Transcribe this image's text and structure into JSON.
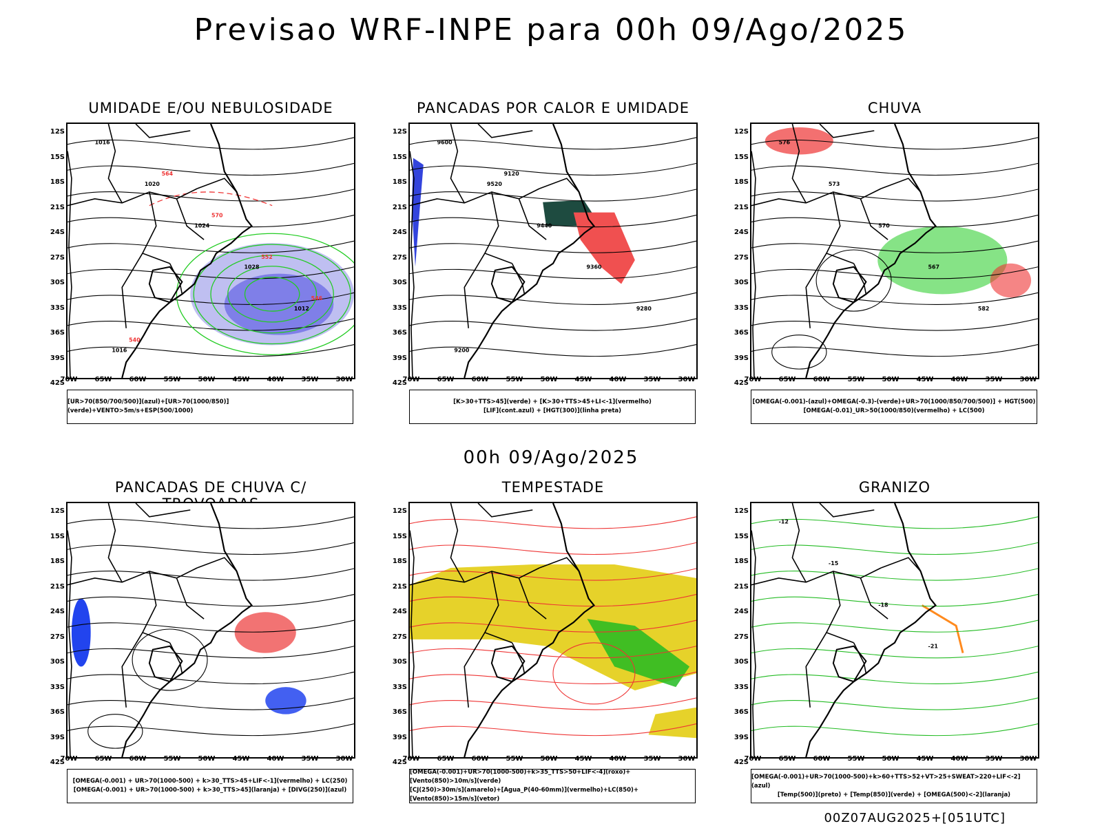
{
  "header": {
    "title": "Previsao WRF-INPE  para 00h 09/Ago/2025",
    "mid_title": "00h 09/Ago/2025",
    "footer": "00Z07AUG2025+[051UTC]"
  },
  "axes": {
    "y_labels": [
      "12S",
      "15S",
      "18S",
      "21S",
      "24S",
      "27S",
      "30S",
      "33S",
      "36S",
      "39S",
      "42S"
    ],
    "x_labels": [
      "70W",
      "65W",
      "60W",
      "55W",
      "50W",
      "45W",
      "40W",
      "35W",
      "30W"
    ]
  },
  "panels": [
    {
      "title": "UMIDADE E/OU NEBULOSIDADE",
      "legend": [
        "[UR>70(850/700/500)](azul)+[UR>70(1000/850)](verde)+VENTO>5m/s+ESP(500/1000)"
      ],
      "contour_labels": [
        "1016",
        "1020",
        "1024",
        "1028",
        "1012",
        "1016",
        "564",
        "570",
        "552",
        "546",
        "540"
      ]
    },
    {
      "title": "PANCADAS POR CALOR E UMIDADE",
      "legend": [
        "[K>30+TTS>45](verde) + [K>30+TTS>45+LI<-1](vermelho)",
        "[LIF](cont.azul) + [HGT(300)](linha preta)"
      ],
      "contour_labels": [
        "9600",
        "9520",
        "9440",
        "9360",
        "9280",
        "9200",
        "9120"
      ]
    },
    {
      "title": "CHUVA",
      "legend": [
        "[OMEGA(-0.001)-(azul)+OMEGA(-0.3)-(verde)+UR>70(1000/850/700/500)] + HGT(500)",
        "[OMEGA(-0.01)_UR>50(1000/850)(vermelho) + LC(500)"
      ],
      "contour_labels": [
        "576",
        "573",
        "570",
        "567",
        "582"
      ]
    },
    {
      "title": "PANCADAS DE CHUVA C/ TROVOADAS",
      "legend": [
        "[OMEGA(-0.001) + UR>70(1000-500) + k>30_TTS>45+LIF<-1](vermelho) + LC(250)",
        "[OMEGA(-0.001) + UR>70(1000-500) + k>30_TTS>45](laranja) + [DIVG(250)](azul)"
      ],
      "contour_labels": []
    },
    {
      "title": "TEMPESTADE",
      "legend": [
        "[OMEGA(-0.001)+UR>70(1000-500)+k>35_TTS>50+LIF<-4](roxo)+[Vento(850)>10m/s](verde)",
        "[CJ(250)>30m/s](amarelo)+[Agua_P(40-60mm)](vermelho)+LC(850)+[Vento(850)>15m/s](vetor)"
      ],
      "contour_labels": []
    },
    {
      "title": "GRANIZO",
      "legend": [
        "[OMEGA(-0.001)+UR>70(1000-500)+k>60+TTS>52+VT>25+SWEAT>220+LIF<-2](azul)",
        "[Temp(500)](preto) + [Temp(850)](verde) + [OMEGA(500)<-2](laranja)"
      ],
      "contour_labels": [
        "-12",
        "-15",
        "-18",
        "-21"
      ]
    }
  ]
}
